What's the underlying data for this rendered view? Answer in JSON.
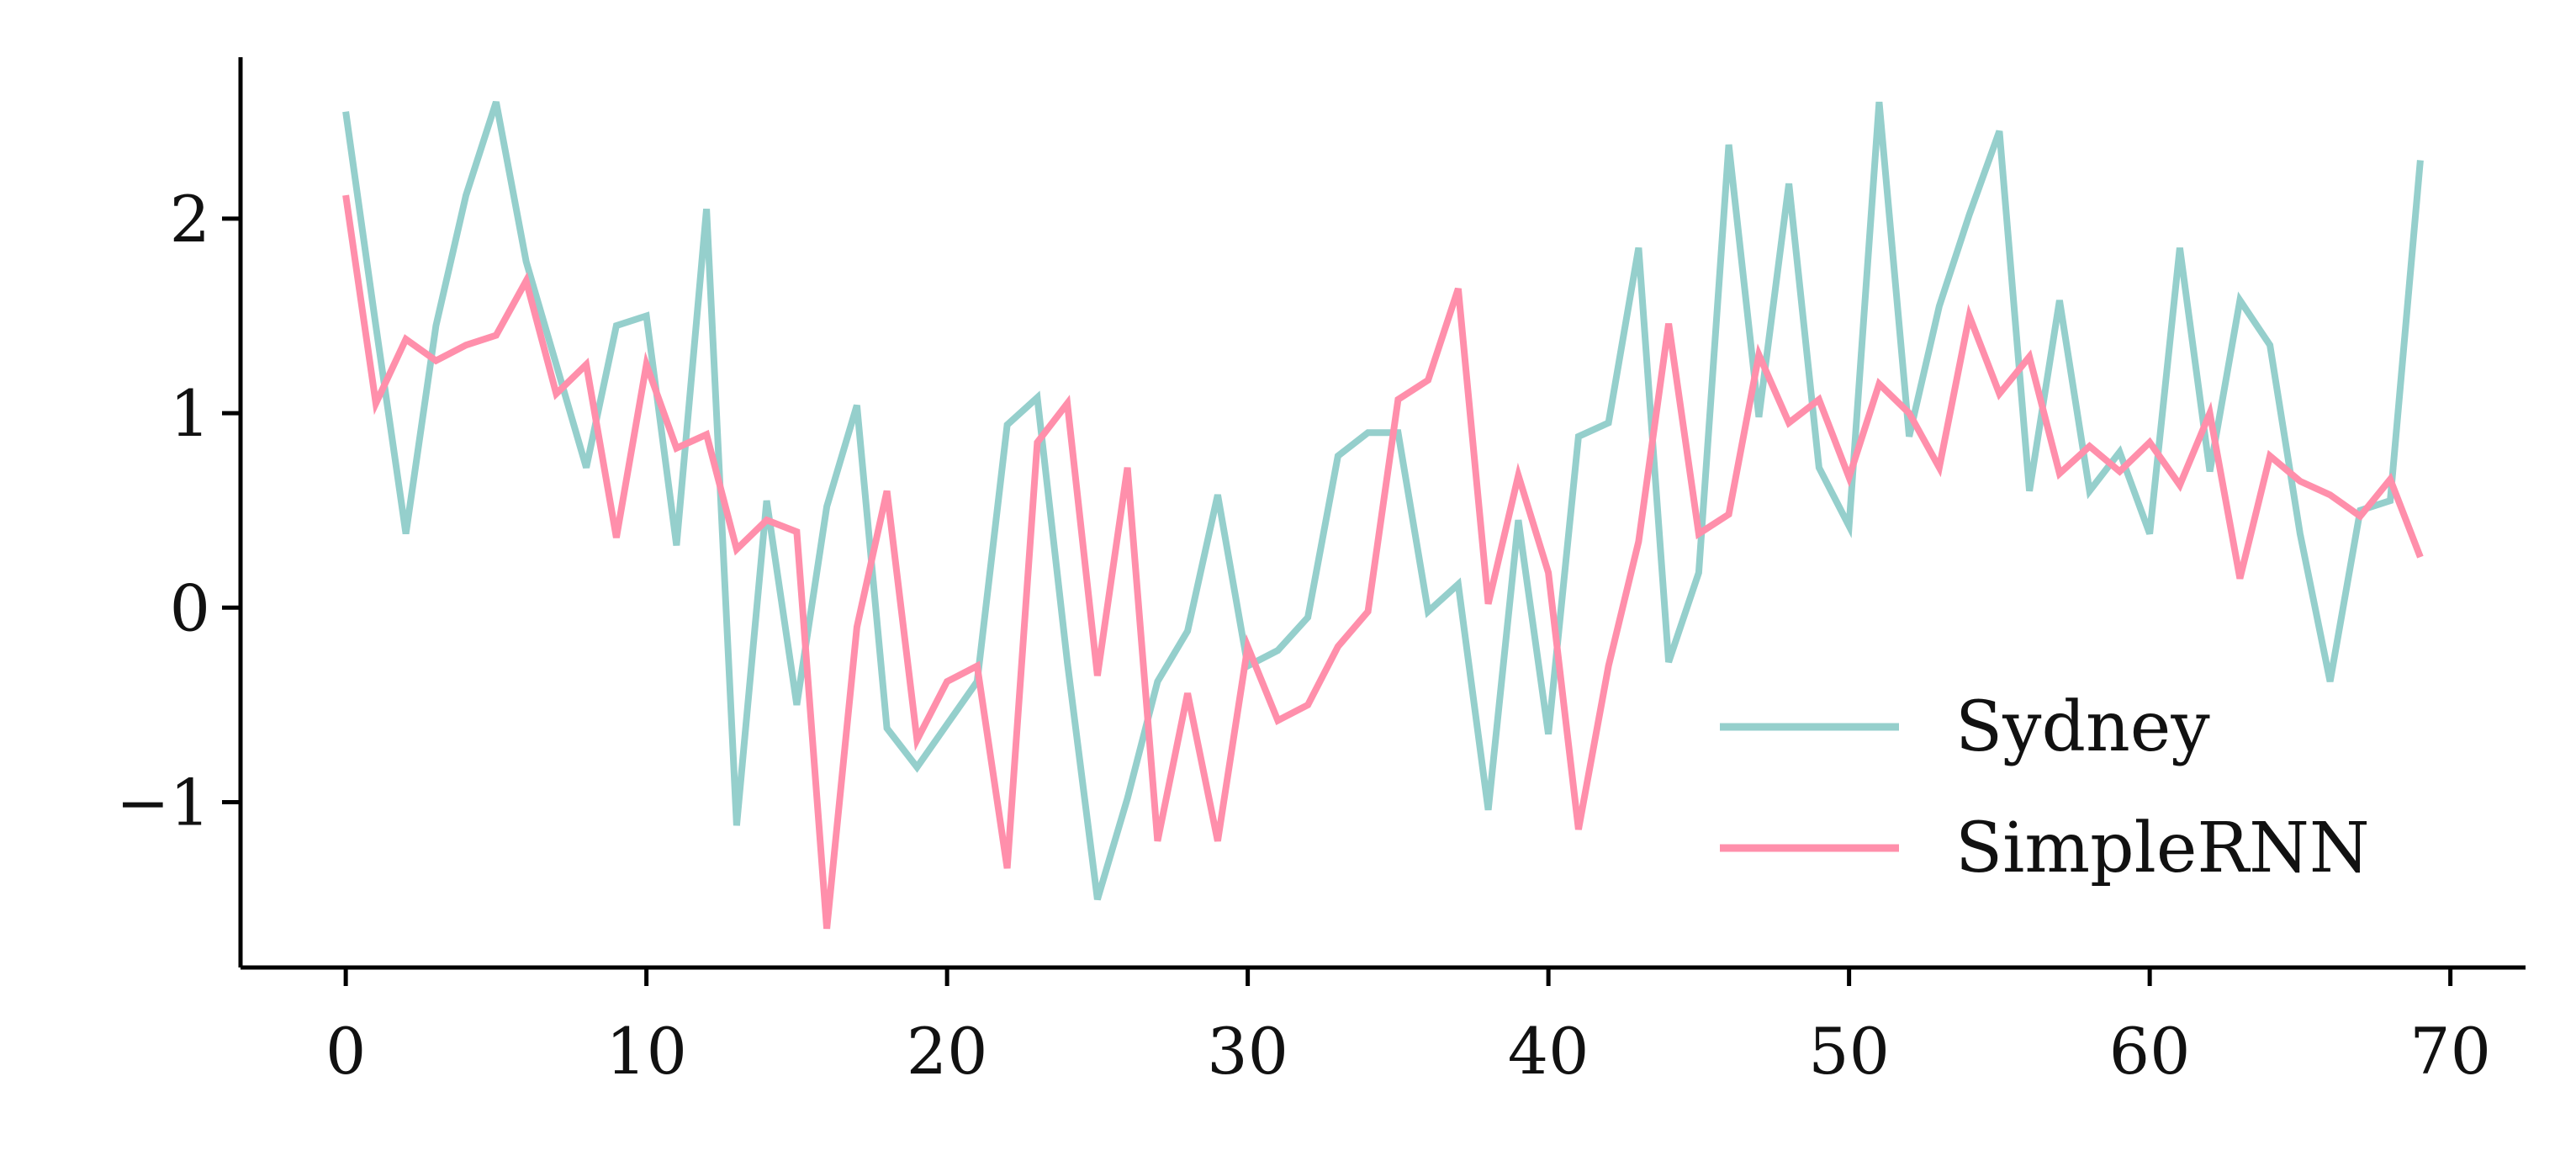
{
  "chart_data": {
    "type": "line",
    "title": "",
    "xlabel": "",
    "ylabel": "",
    "xlim": [
      -3.5,
      72.5
    ],
    "ylim": [
      -1.85,
      2.83
    ],
    "x_ticks": [
      0,
      10,
      20,
      30,
      40,
      50,
      60,
      70
    ],
    "y_ticks": [
      -1,
      0,
      1,
      2
    ],
    "x_tick_labels": [
      "0",
      "10",
      "20",
      "30",
      "40",
      "50",
      "60",
      "70"
    ],
    "y_tick_labels": [
      "−1",
      "0",
      "1",
      "2"
    ],
    "grid": false,
    "legend_position": "lower-right",
    "x": [
      0,
      1,
      2,
      3,
      4,
      5,
      6,
      7,
      8,
      9,
      10,
      11,
      12,
      13,
      14,
      15,
      16,
      17,
      18,
      19,
      20,
      21,
      22,
      23,
      24,
      25,
      26,
      27,
      28,
      29,
      30,
      31,
      32,
      33,
      34,
      35,
      36,
      37,
      38,
      39,
      40,
      41,
      42,
      43,
      44,
      45,
      46,
      47,
      48,
      49,
      50,
      51,
      52,
      53,
      54,
      55,
      56,
      57,
      58,
      59,
      60,
      61,
      62,
      63,
      64,
      65,
      66,
      67,
      68,
      69
    ],
    "series": [
      {
        "name": "Sydney",
        "color": "#95cfcc",
        "values": [
          2.55,
          1.45,
          0.38,
          1.45,
          2.12,
          2.6,
          1.78,
          1.25,
          0.72,
          1.45,
          1.5,
          0.32,
          2.05,
          -1.12,
          0.55,
          -0.5,
          0.52,
          1.04,
          -0.62,
          -0.82,
          -0.6,
          -0.38,
          0.94,
          1.08,
          -0.28,
          -1.5,
          -0.98,
          -0.38,
          -0.12,
          0.58,
          -0.3,
          -0.22,
          -0.05,
          0.78,
          0.9,
          0.9,
          -0.02,
          0.12,
          -1.04,
          0.45,
          -0.65,
          0.88,
          0.95,
          1.85,
          -0.28,
          0.18,
          2.38,
          0.98,
          2.18,
          0.72,
          0.42,
          2.6,
          0.88,
          1.55,
          2.02,
          2.45,
          0.6,
          1.58,
          0.6,
          0.8,
          0.38,
          1.85,
          0.7,
          1.58,
          1.35,
          0.38,
          -0.38,
          0.5,
          0.55,
          2.3
        ]
      },
      {
        "name": "SimpleRNN",
        "color": "#ff8fab",
        "values": [
          2.12,
          1.05,
          1.38,
          1.27,
          1.35,
          1.4,
          1.68,
          1.1,
          1.25,
          0.36,
          1.25,
          0.82,
          0.89,
          0.3,
          0.45,
          0.39,
          -1.65,
          -0.1,
          0.6,
          -0.68,
          -0.38,
          -0.3,
          -1.34,
          0.85,
          1.05,
          -0.35,
          0.72,
          -1.2,
          -0.44,
          -1.2,
          -0.2,
          -0.58,
          -0.5,
          -0.2,
          -0.02,
          1.07,
          1.17,
          1.64,
          0.02,
          0.68,
          0.18,
          -1.14,
          -0.3,
          0.34,
          1.46,
          0.38,
          0.48,
          1.3,
          0.95,
          1.07,
          0.67,
          1.15,
          1.0,
          0.72,
          1.5,
          1.1,
          1.29,
          0.69,
          0.83,
          0.7,
          0.85,
          0.63,
          1.0,
          0.15,
          0.78,
          0.65,
          0.58,
          0.47,
          0.66,
          0.26
        ]
      }
    ]
  }
}
